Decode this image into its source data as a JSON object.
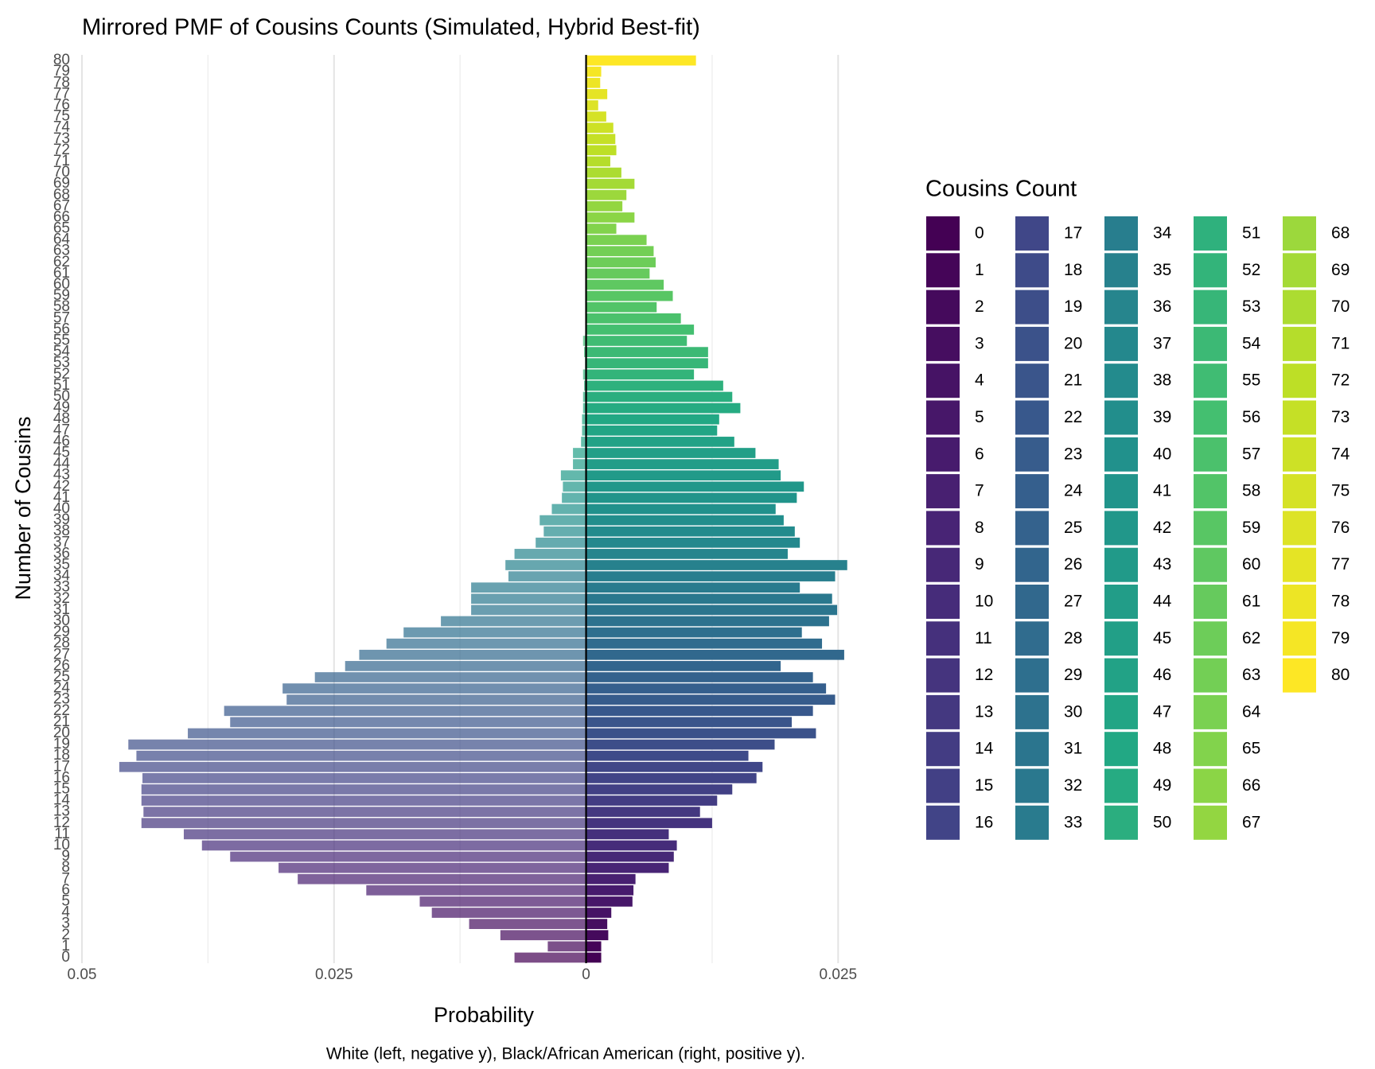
{
  "chart_data": {
    "type": "mirrored_bar",
    "title": "Mirrored PMF of Cousins Counts (Simulated, Hybrid Best-fit)",
    "x_label": "Probability",
    "y_label": "Number of Cousins",
    "caption": "White (left, negative y), Black/African American (right, positive y).",
    "legend_title": "Cousins Count",
    "legend_position": "right",
    "legend_rows": 17,
    "colormap": "viridis",
    "categories": [
      0,
      1,
      2,
      3,
      4,
      5,
      6,
      7,
      8,
      9,
      10,
      11,
      12,
      13,
      14,
      15,
      16,
      17,
      18,
      19,
      20,
      21,
      22,
      23,
      24,
      25,
      26,
      27,
      28,
      29,
      30,
      31,
      32,
      33,
      34,
      35,
      36,
      37,
      38,
      39,
      40,
      41,
      42,
      43,
      44,
      45,
      46,
      47,
      48,
      49,
      50,
      51,
      52,
      53,
      54,
      55,
      56,
      57,
      58,
      59,
      60,
      61,
      62,
      63,
      64,
      65,
      66,
      67,
      68,
      69,
      70,
      71,
      72,
      73,
      74,
      75,
      76,
      77,
      78,
      79,
      80
    ],
    "series": [
      {
        "opacity": 0.7,
        "values": [
          -0.0071,
          -0.0038,
          -0.0085,
          -0.0116,
          -0.0153,
          -0.0165,
          -0.0218,
          -0.0286,
          -0.0305,
          -0.0353,
          -0.0381,
          -0.0399,
          -0.0441,
          -0.0439,
          -0.0441,
          -0.0441,
          -0.044,
          -0.0463,
          -0.0446,
          -0.0454,
          -0.0395,
          -0.0353,
          -0.0359,
          -0.0297,
          -0.0301,
          -0.0269,
          -0.0239,
          -0.0225,
          -0.0198,
          -0.0181,
          -0.0144,
          -0.0114,
          -0.0114,
          -0.0114,
          -0.0077,
          -0.008,
          -0.0071,
          -0.005,
          -0.0042,
          -0.0046,
          -0.0034,
          -0.0024,
          -0.0023,
          -0.0025,
          -0.0013,
          -0.0013,
          -0.0005,
          -0.0004,
          -0.0004,
          -0.0003,
          -0.0003,
          -0.0002,
          -0.0003,
          -0.0001,
          -0.0002,
          -0.0003,
          0,
          0,
          0,
          0,
          0,
          0,
          0,
          0,
          0,
          0,
          0,
          0,
          0,
          0,
          0,
          0,
          0,
          0,
          0,
          0,
          0,
          0,
          0,
          0,
          0
        ]
      },
      {
        "opacity": 1,
        "values": [
          0.0015,
          0.0015,
          0.0022,
          0.0021,
          0.0025,
          0.0046,
          0.0047,
          0.0049,
          0.0082,
          0.0087,
          0.009,
          0.0082,
          0.0125,
          0.0113,
          0.013,
          0.0145,
          0.0169,
          0.0175,
          0.0161,
          0.0187,
          0.0228,
          0.0204,
          0.0225,
          0.0247,
          0.0238,
          0.0225,
          0.0193,
          0.0256,
          0.0234,
          0.0214,
          0.0241,
          0.0249,
          0.0244,
          0.0212,
          0.0247,
          0.0259,
          0.02,
          0.0212,
          0.0207,
          0.0196,
          0.0188,
          0.0209,
          0.0216,
          0.0193,
          0.0191,
          0.0168,
          0.0147,
          0.013,
          0.0132,
          0.0153,
          0.0145,
          0.0136,
          0.0107,
          0.0121,
          0.0121,
          0.01,
          0.0107,
          0.0094,
          0.007,
          0.0086,
          0.0077,
          0.0063,
          0.0069,
          0.0067,
          0.006,
          0.003,
          0.0048,
          0.0036,
          0.004,
          0.0048,
          0.0035,
          0.0024,
          0.003,
          0.0029,
          0.0027,
          0.002,
          0.0012,
          0.0021,
          0.0014,
          0.0015,
          0.0109
        ]
      }
    ],
    "xlim": [
      -0.05,
      0.029
    ],
    "xticks": [
      {
        "value": -0.05,
        "label": "0.05"
      },
      {
        "value": -0.025,
        "label": "0.025"
      },
      0,
      0.025
    ],
    "x_minor_grid": [
      -0.0375,
      -0.0125,
      0.0125
    ],
    "grid": true,
    "zero_line": true
  }
}
